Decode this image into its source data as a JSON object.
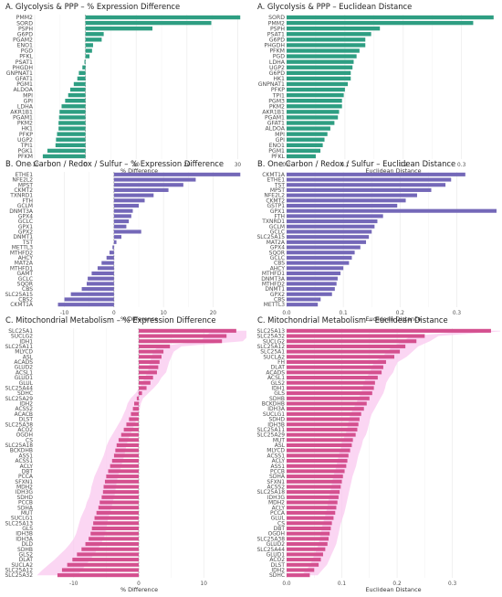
{
  "colors": {
    "glycolysis": "#2e9e82",
    "onecarbon": "#7468b8",
    "mito": "#d4508f",
    "mito_range": "#f9c8ef",
    "grid": "#ebebeb",
    "zero_line": "#8a8a8a"
  },
  "chart_data": [
    {
      "id": "glyc_pct",
      "type": "bar",
      "orientation": "horizontal",
      "title": "A. Glycolysis & PPP – % Expression Difference",
      "xlabel": "% Difference",
      "xlim": [
        -10,
        31
      ],
      "ticks": [
        -10,
        0,
        10,
        20,
        30
      ],
      "color_key": "glycolysis",
      "categories": [
        "PMM2",
        "SORD",
        "PSPH",
        "G6PD",
        "PGAM2",
        "ENO1",
        "PGD",
        "PFKL",
        "PSAT1",
        "PHGDH",
        "GNPNAT1",
        "GFAT1",
        "PGM1",
        "ALDOA",
        "MPI",
        "GPI",
        "LDHA",
        "AKR1B1",
        "PGAM1",
        "PKM2",
        "HK1",
        "PFKP",
        "UGP2",
        "TPI1",
        "PGK1",
        "PFKM"
      ],
      "values": [
        30.5,
        24.8,
        13.2,
        3.6,
        3.2,
        1.5,
        1.3,
        0.8,
        -0.2,
        -0.6,
        -1.3,
        -1.6,
        -2.3,
        -3.0,
        -3.4,
        -4.0,
        -4.7,
        -5.1,
        -5.2,
        -5.3,
        -5.3,
        -5.6,
        -5.8,
        -5.9,
        -7.5,
        -8.4
      ]
    },
    {
      "id": "glyc_dist",
      "type": "bar",
      "orientation": "horizontal",
      "title": "A. Glycolysis & PPP – Euclidean Distance",
      "xlabel": "Euclidean Distance",
      "xlim": [
        0,
        0.36
      ],
      "ticks": [
        0.0,
        0.1,
        0.2,
        0.3
      ],
      "color_key": "glycolysis",
      "categories": [
        "SORD",
        "PMM2",
        "PSPH",
        "PSAT1",
        "G6PD",
        "PHGDH",
        "PFKM",
        "PGD",
        "LDHA",
        "UGP2",
        "G6PD",
        "HK1",
        "GNPNAT1",
        "PFKP",
        "TPI1",
        "PGM3",
        "PKM2",
        "AKR1B1",
        "PGAM1",
        "GFAT1",
        "ALDOA",
        "MPI",
        "GPI",
        "ENO1",
        "PGM1",
        "PFKL"
      ],
      "values": [
        0.355,
        0.32,
        0.16,
        0.145,
        0.135,
        0.135,
        0.125,
        0.12,
        0.115,
        0.113,
        0.11,
        0.11,
        0.105,
        0.1,
        0.098,
        0.095,
        0.095,
        0.09,
        0.088,
        0.082,
        0.075,
        0.07,
        0.065,
        0.062,
        0.058,
        0.05
      ]
    },
    {
      "id": "oc_pct",
      "type": "bar",
      "orientation": "horizontal",
      "title": "B. One Carbon / Redox / Sulfur – % Expression Difference",
      "xlabel": "% Difference",
      "xlim": [
        -16,
        26
      ],
      "ticks": [
        -10,
        0,
        10,
        20
      ],
      "color_key": "onecarbon",
      "categories": [
        "ETHE1",
        "NFE2L2",
        "MPST",
        "CKMT2",
        "TXNRD1",
        "FTH",
        "GCLM",
        "DNMT3A",
        "GPX4",
        "GCLC",
        "GPX1",
        "GPX2",
        "DNMT1",
        "TST",
        "METTL3",
        "MTHFD2",
        "AHCY",
        "MAT2A",
        "MTHFD1",
        "GAMT",
        "GCLC",
        "SQOR",
        "CBS",
        "SLC25A15",
        "CBS2",
        "CKMT1A"
      ],
      "values": [
        25.5,
        16.5,
        14.0,
        11.0,
        8.0,
        6.2,
        5.0,
        3.8,
        3.5,
        3.0,
        2.5,
        5.5,
        1.5,
        0.5,
        -0.3,
        -0.9,
        -1.5,
        -2.5,
        -3.3,
        -4.5,
        -5.3,
        -5.5,
        -6.5,
        -8.7,
        -10.0,
        -11.3
      ]
    },
    {
      "id": "oc_dist",
      "type": "bar",
      "orientation": "horizontal",
      "title": "B. One Carbon / Redox / Sulfur – Euclidean Distance",
      "xlabel": "Euclidean Distance",
      "xlim": [
        0,
        0.37
      ],
      "ticks": [
        0.0,
        0.1,
        0.2,
        0.3
      ],
      "color_key": "onecarbon",
      "categories": [
        "CKMT1A",
        "ETHE1",
        "TST",
        "MPST",
        "NFE2L2",
        "CKMT2",
        "GSTP1",
        "GPX1",
        "FTH",
        "TXNRD1",
        "GCLM",
        "GCLC",
        "SLC25A15",
        "MAT2A",
        "GPX4",
        "SQOR",
        "GCLC",
        "CBS",
        "AHCY",
        "MTHFD1",
        "DNMT3A",
        "MTHFD2",
        "DNMT1",
        "GPX2",
        "CBS",
        "METTL3"
      ],
      "values": [
        0.315,
        0.29,
        0.28,
        0.255,
        0.23,
        0.21,
        0.195,
        0.37,
        0.17,
        0.16,
        0.155,
        0.15,
        0.145,
        0.14,
        0.13,
        0.12,
        0.115,
        0.11,
        0.1,
        0.095,
        0.09,
        0.088,
        0.085,
        0.08,
        0.06,
        0.055
      ]
    },
    {
      "id": "mito_pct",
      "type": "bar",
      "orientation": "horizontal",
      "title": "C. Mitochondrial Metabolism – % Expression Difference",
      "xlabel": "% Difference",
      "xlim": [
        -16,
        16
      ],
      "ticks": [
        -10,
        0,
        10
      ],
      "color_key": "mito",
      "range_color_key": "mito_range",
      "categories": [
        "SLC25A1",
        "SUCLG2",
        "IDH1",
        "SLC25A11",
        "MLYCD",
        "ASL",
        "ACADS",
        "GLUD2",
        "ACSL1",
        "GLUD1",
        "GLUL",
        "SLC25A44",
        "SDHC",
        "SLC25A29",
        "IDH2",
        "ACSS2",
        "ACACB",
        "DLST",
        "SLC25A38",
        "ACO2",
        "OGDH",
        "CS",
        "SLC25A18",
        "BCKDHB",
        "ASS1",
        "ACSS1",
        "ACLY",
        "DBT",
        "PCCA",
        "SFXN1",
        "MDH2",
        "IDH3G",
        "SDHD",
        "PCCB",
        "SDHA",
        "MUT",
        "SUCLG1",
        "SLC25A13",
        "GLS",
        "IDH3B",
        "IDH3A",
        "DLD",
        "SDHB",
        "GLS2",
        "DLAT",
        "SUCLA2",
        "SLC25A12",
        "SLC25A32"
      ],
      "values": [
        15.0,
        13.5,
        12.8,
        4.8,
        3.8,
        3.5,
        3.2,
        3.0,
        2.8,
        2.2,
        1.8,
        1.2,
        0.5,
        -0.3,
        -0.7,
        -0.9,
        -1.2,
        -1.5,
        -1.9,
        -2.3,
        -2.7,
        -3.1,
        -3.4,
        -3.6,
        -3.8,
        -4.1,
        -4.4,
        -4.7,
        -5.0,
        -5.2,
        -5.4,
        -5.5,
        -5.7,
        -6.0,
        -6.2,
        -6.5,
        -6.8,
        -7.0,
        -7.2,
        -7.4,
        -7.7,
        -8.2,
        -8.8,
        -9.5,
        -10.2,
        -11.0,
        -11.8,
        -12.5
      ]
    },
    {
      "id": "mito_dist",
      "type": "bar",
      "orientation": "horizontal",
      "title": "C. Mitochondrial Metabolism – Euclidean Distance",
      "xlabel": "Euclidean Distance",
      "xlim": [
        0,
        0.38
      ],
      "ticks": [
        0.0,
        0.1,
        0.2,
        0.3
      ],
      "color_key": "mito",
      "range_color_key": "mito_range",
      "categories": [
        "SLC25A13",
        "SLC25A32",
        "SUCLG2",
        "SLC25A12",
        "SLC25A1",
        "SUCLA2",
        "FH",
        "DLAT",
        "ACADS",
        "ACSL1",
        "GLS2",
        "IDH1",
        "GLS",
        "SDHB",
        "BCKDHB",
        "IDH3A",
        "SUCLG1",
        "SDHD",
        "IDH3B",
        "SLC25A11",
        "SLC25A29",
        "MUT",
        "ASL",
        "MLYCD",
        "ACSS1",
        "ACLY",
        "ASS1",
        "PCCB",
        "SDHA",
        "SFXN1",
        "ACSS2",
        "SLC25A18",
        "IDH3G",
        "MDH2",
        "ACLY",
        "PCCA",
        "GLUL",
        "CS",
        "DBT",
        "OGDH",
        "SLC25A38",
        "GLUD2",
        "SLC25A44",
        "GLUD1",
        "ACO2",
        "DLST",
        "IDH2",
        "SDHC"
      ],
      "values": [
        0.37,
        0.25,
        0.235,
        0.215,
        0.205,
        0.195,
        0.18,
        0.175,
        0.172,
        0.165,
        0.16,
        0.158,
        0.155,
        0.15,
        0.145,
        0.14,
        0.135,
        0.132,
        0.13,
        0.128,
        0.125,
        0.12,
        0.118,
        0.115,
        0.112,
        0.11,
        0.108,
        0.105,
        0.102,
        0.1,
        0.098,
        0.096,
        0.094,
        0.092,
        0.09,
        0.088,
        0.085,
        0.082,
        0.08,
        0.078,
        0.076,
        0.074,
        0.07,
        0.066,
        0.062,
        0.058,
        0.05,
        0.042
      ]
    }
  ]
}
